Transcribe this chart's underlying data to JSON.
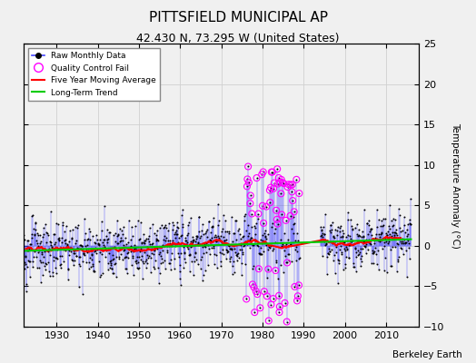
{
  "title": "PITTSFIELD MUNICIPAL AP",
  "subtitle": "42.430 N, 73.295 W (United States)",
  "credit": "Berkeley Earth",
  "ylabel": "Temperature Anomaly (°C)",
  "xlim": [
    1922,
    2018
  ],
  "ylim": [
    -10,
    25
  ],
  "yticks": [
    -10,
    -5,
    0,
    5,
    10,
    15,
    20,
    25
  ],
  "xticks": [
    1930,
    1940,
    1950,
    1960,
    1970,
    1980,
    1990,
    2000,
    2010
  ],
  "bg_color": "#f0f0f0",
  "grid_color": "#d0d0d0",
  "raw_line_color": "#4444ff",
  "dot_color": "#000000",
  "qc_color": "#ff00ff",
  "moving_avg_color": "#ff0000",
  "trend_color": "#00cc00",
  "seed": 123,
  "noise_std": 2.2,
  "trend_slope": 0.015,
  "trend_intercept": 0.0,
  "qc_start": 1976,
  "qc_end": 1989,
  "gap_start": 1989,
  "gap_end": 1994
}
